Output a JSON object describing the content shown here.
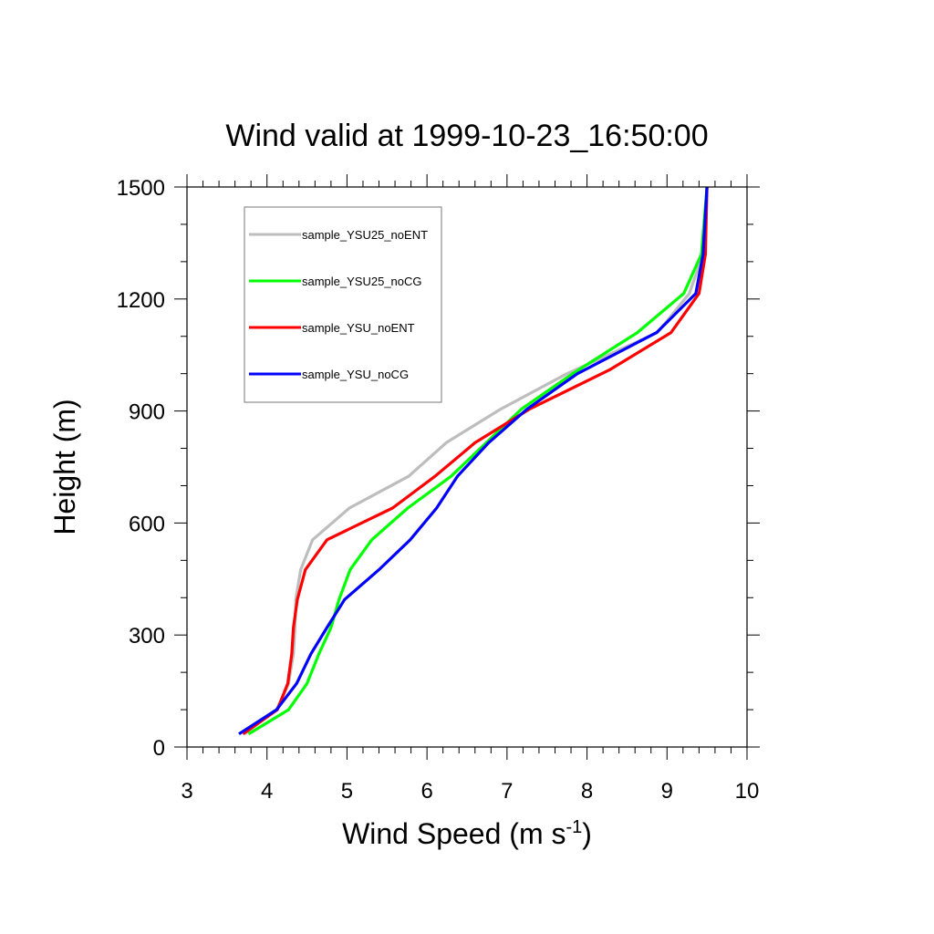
{
  "chart_data": {
    "type": "line",
    "title": "Wind valid at 1999-10-23_16:50:00",
    "xlabel": "Wind Speed (m s",
    "xlabel_superscript": "-1",
    "xlabel_suffix": ")",
    "ylabel": "Height (m)",
    "xlim": [
      3,
      10
    ],
    "ylim": [
      0,
      1500
    ],
    "xticks": [
      "3",
      "4",
      "5",
      "6",
      "7",
      "8",
      "9",
      "10"
    ],
    "yticks": [
      "0",
      "300",
      "600",
      "900",
      "1200",
      "1500"
    ],
    "legend_position": "top-left",
    "grid": false,
    "series": [
      {
        "name": "sample_YSU25_noENT",
        "color": "#bdbdbd",
        "points": [
          [
            3.72,
            35
          ],
          [
            4.12,
            100
          ],
          [
            4.27,
            170
          ],
          [
            4.33,
            250
          ],
          [
            4.35,
            320
          ],
          [
            4.36,
            395
          ],
          [
            4.42,
            475
          ],
          [
            4.57,
            555
          ],
          [
            5.03,
            640
          ],
          [
            5.77,
            725
          ],
          [
            6.24,
            815
          ],
          [
            6.92,
            905
          ],
          [
            7.75,
            1000
          ],
          [
            8.88,
            1110
          ],
          [
            9.28,
            1215
          ],
          [
            9.45,
            1320
          ],
          [
            9.5,
            1500
          ]
        ]
      },
      {
        "name": "sample_YSU25_noCG",
        "color": "#00ff00",
        "points": [
          [
            3.77,
            35
          ],
          [
            4.27,
            100
          ],
          [
            4.5,
            170
          ],
          [
            4.65,
            250
          ],
          [
            4.8,
            320
          ],
          [
            4.9,
            395
          ],
          [
            5.04,
            475
          ],
          [
            5.31,
            555
          ],
          [
            5.76,
            640
          ],
          [
            6.3,
            725
          ],
          [
            6.74,
            815
          ],
          [
            7.18,
            905
          ],
          [
            7.82,
            1000
          ],
          [
            8.63,
            1110
          ],
          [
            9.21,
            1215
          ],
          [
            9.43,
            1320
          ],
          [
            9.5,
            1500
          ]
        ]
      },
      {
        "name": "sample_YSU_noENT",
        "color": "#ff0000",
        "points": [
          [
            3.7,
            35
          ],
          [
            4.13,
            100
          ],
          [
            4.26,
            170
          ],
          [
            4.31,
            250
          ],
          [
            4.33,
            320
          ],
          [
            4.38,
            395
          ],
          [
            4.48,
            475
          ],
          [
            4.75,
            555
          ],
          [
            5.57,
            640
          ],
          [
            6.1,
            725
          ],
          [
            6.6,
            815
          ],
          [
            7.28,
            905
          ],
          [
            8.28,
            1010
          ],
          [
            9.05,
            1110
          ],
          [
            9.4,
            1215
          ],
          [
            9.48,
            1320
          ],
          [
            9.5,
            1500
          ]
        ]
      },
      {
        "name": "sample_YSU_noCG",
        "color": "#0000ff",
        "points": [
          [
            3.65,
            35
          ],
          [
            4.12,
            100
          ],
          [
            4.37,
            170
          ],
          [
            4.55,
            250
          ],
          [
            4.75,
            320
          ],
          [
            4.97,
            395
          ],
          [
            5.4,
            475
          ],
          [
            5.79,
            555
          ],
          [
            6.12,
            640
          ],
          [
            6.38,
            725
          ],
          [
            6.77,
            815
          ],
          [
            7.25,
            905
          ],
          [
            7.88,
            1000
          ],
          [
            8.87,
            1110
          ],
          [
            9.36,
            1215
          ],
          [
            9.45,
            1320
          ],
          [
            9.5,
            1500
          ]
        ]
      }
    ]
  }
}
